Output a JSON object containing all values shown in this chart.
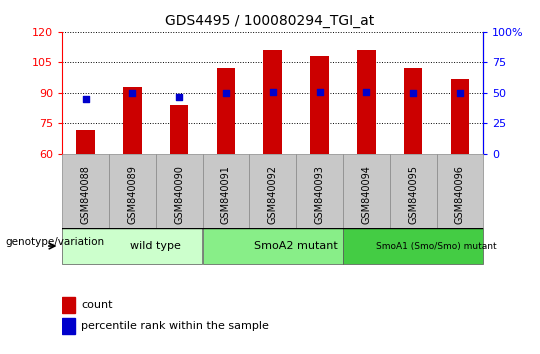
{
  "title": "GDS4495 / 100080294_TGI_at",
  "categories": [
    "GSM840088",
    "GSM840089",
    "GSM840090",
    "GSM840091",
    "GSM840092",
    "GSM840093",
    "GSM840094",
    "GSM840095",
    "GSM840096"
  ],
  "bar_values": [
    72,
    93,
    84,
    102,
    111,
    108,
    111,
    102,
    97
  ],
  "dot_percentiles": [
    45,
    50,
    47,
    50,
    51,
    51,
    51,
    50,
    50
  ],
  "bar_color": "#cc0000",
  "dot_color": "#0000cc",
  "ylim_left": [
    60,
    120
  ],
  "ylim_right": [
    0,
    100
  ],
  "yticks_left": [
    60,
    75,
    90,
    105,
    120
  ],
  "yticks_right": [
    0,
    25,
    50,
    75,
    100
  ],
  "groups": [
    {
      "label": "wild type",
      "start": 0,
      "end": 3,
      "color": "#ccffcc"
    },
    {
      "label": "SmoA2 mutant",
      "start": 3,
      "end": 6,
      "color": "#88ee88"
    },
    {
      "label": "SmoA1 (Smo/Smo) mutant",
      "start": 6,
      "end": 9,
      "color": "#44cc44"
    }
  ],
  "legend_count_label": "count",
  "legend_pct_label": "percentile rank within the sample",
  "genotype_label": "genotype/variation"
}
